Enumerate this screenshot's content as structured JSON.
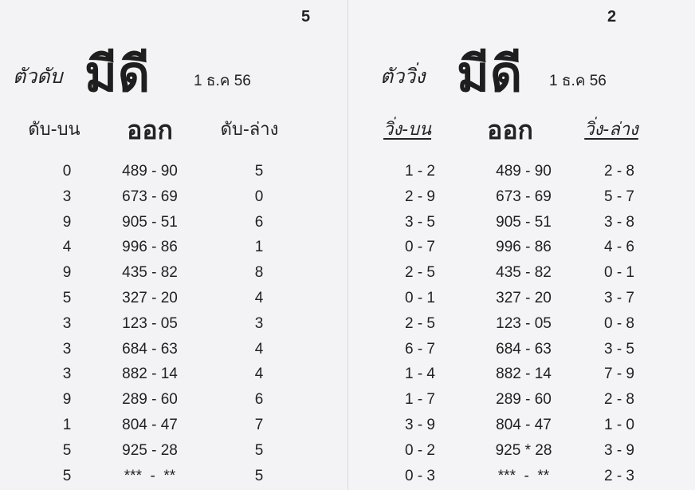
{
  "left_page": {
    "page_number": "5",
    "label": "ตัวดับ",
    "title": "มีดี",
    "date": "1 ธ.ค 56",
    "headers": [
      "ดับ-บน",
      "ออก",
      "ดับ-ล่าง"
    ],
    "rows": [
      [
        "0",
        "489 - 90",
        "5"
      ],
      [
        "3",
        "673 - 69",
        "0"
      ],
      [
        "9",
        "905 - 51",
        "6"
      ],
      [
        "4",
        "996 - 86",
        "1"
      ],
      [
        "9",
        "435 - 82",
        "8"
      ],
      [
        "5",
        "327 - 20",
        "4"
      ],
      [
        "3",
        "123 - 05",
        "3"
      ],
      [
        "3",
        "684 - 63",
        "4"
      ],
      [
        "3",
        "882 - 14",
        "4"
      ],
      [
        "9",
        "289 - 60",
        "6"
      ],
      [
        "1",
        "804 - 47",
        "7"
      ],
      [
        "5",
        "925 - 28",
        "5"
      ],
      [
        "5",
        "***  -  **",
        "5"
      ]
    ]
  },
  "right_page": {
    "page_number": "2",
    "label": "ตัววิ่ง",
    "title": "มีดี",
    "date": "1 ธ.ค 56",
    "headers": [
      "วิ่ง-บน",
      "ออก",
      "วิ่ง-ล่าง"
    ],
    "rows": [
      [
        "1 - 2",
        "489 - 90",
        "2 - 8"
      ],
      [
        "2 - 9",
        "673 - 69",
        "5 - 7"
      ],
      [
        "3 - 5",
        "905 - 51",
        "3 - 8"
      ],
      [
        "0 - 7",
        "996 - 86",
        "4 - 6"
      ],
      [
        "2 - 5",
        "435 - 82",
        "0 - 1"
      ],
      [
        "0 - 1",
        "327 - 20",
        "3 - 7"
      ],
      [
        "2 - 5",
        "123 - 05",
        "0 - 8"
      ],
      [
        "6 - 7",
        "684 - 63",
        "3 - 5"
      ],
      [
        "1 - 4",
        "882 - 14",
        "7 - 9"
      ],
      [
        "1 - 7",
        "289 - 60",
        "2 - 8"
      ],
      [
        "3 - 9",
        "804 - 47",
        "1 - 0"
      ],
      [
        "0 - 2",
        "925 * 28",
        "3 - 9"
      ],
      [
        "0 - 3",
        "***  -  **",
        "2 - 3"
      ]
    ]
  }
}
